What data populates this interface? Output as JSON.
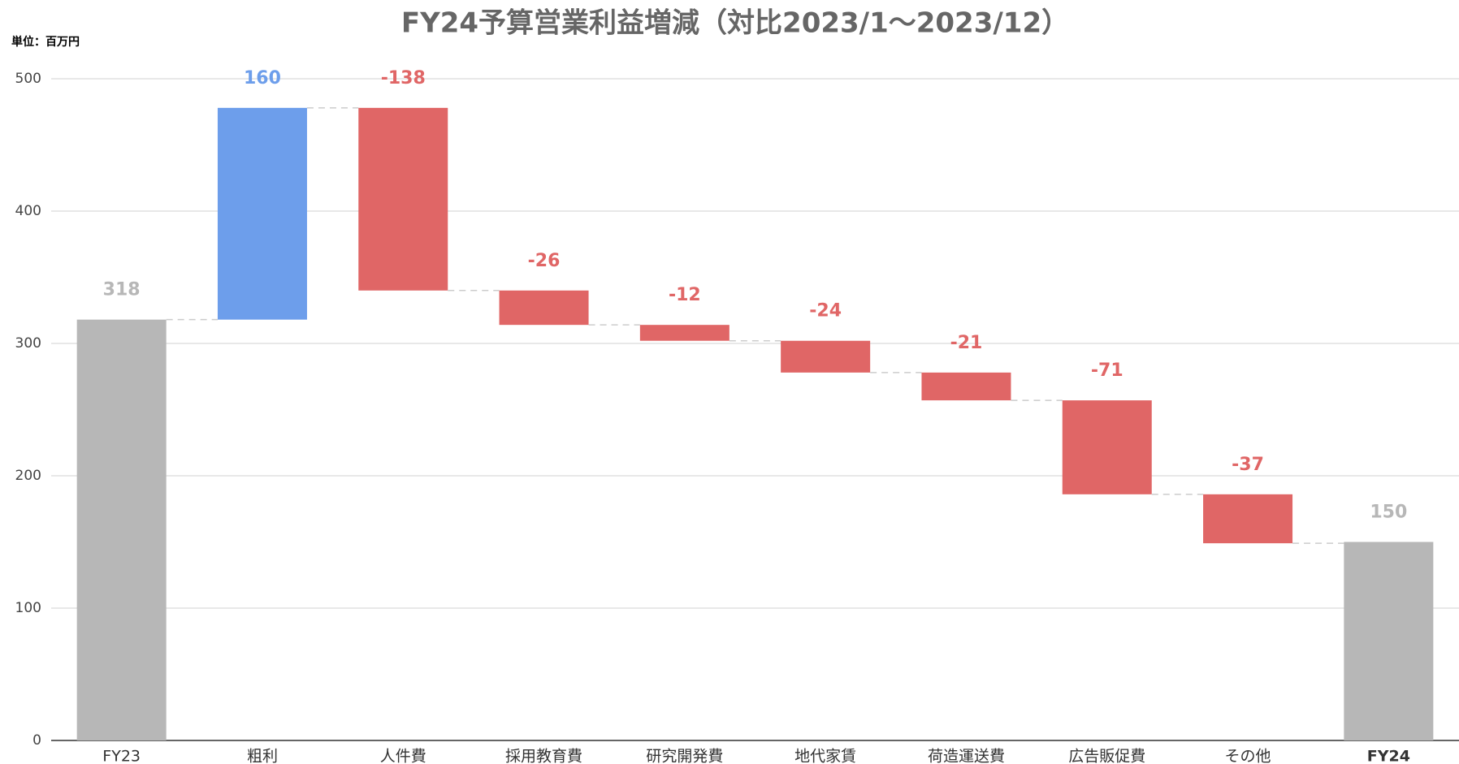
{
  "chart_data": {
    "type": "waterfall",
    "title": "FY24予算営業利益増減（対比2023/1〜2023/12）",
    "unit_label": "単位：百万円",
    "categories": [
      "FY23",
      "粗利",
      "人件費",
      "採用教育費",
      "研究開発費",
      "地代家賃",
      "荷造運送費",
      "広告販促費",
      "その他",
      "FY24"
    ],
    "values": [
      318,
      160,
      -138,
      -26,
      -12,
      -24,
      -21,
      -71,
      -37,
      150
    ],
    "measure": [
      "absolute",
      "relative",
      "relative",
      "relative",
      "relative",
      "relative",
      "relative",
      "relative",
      "relative",
      "absolute"
    ],
    "colors": {
      "total": "#b7b7b7",
      "increase": "#6d9eeb",
      "decrease": "#e06666"
    },
    "ylim": [
      0,
      500
    ],
    "yticks": [
      0,
      100,
      200,
      300,
      400,
      500
    ],
    "grid": true
  }
}
